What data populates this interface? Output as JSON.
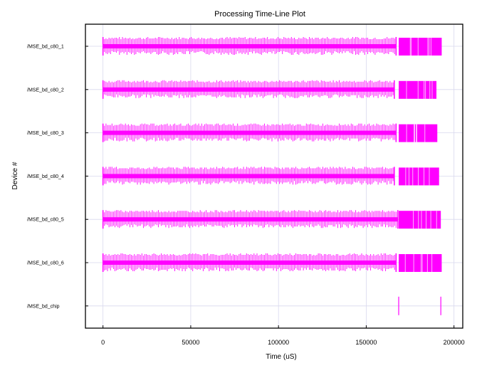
{
  "chart_data": {
    "type": "timeline",
    "title": "Processing Time-Line Plot",
    "xlabel": "Time (uS)",
    "ylabel": "Device #",
    "xlim": [
      -10000,
      205000
    ],
    "x_ticks": [
      0,
      50000,
      100000,
      150000,
      200000
    ],
    "grid": true,
    "mark_color": "#ff00ff",
    "grid_color": "#d8d8ee",
    "devices": [
      {
        "name": "/MSE_bd_c80_1",
        "segments": [
          {
            "start": 0,
            "end": 167000,
            "style": "dense-ticks"
          },
          {
            "start": 168500,
            "end": 193000,
            "style": "block"
          }
        ]
      },
      {
        "name": "/MSE_bd_c80_2",
        "segments": [
          {
            "start": 0,
            "end": 166000,
            "style": "dense-ticks"
          },
          {
            "start": 168500,
            "end": 190000,
            "style": "block"
          }
        ]
      },
      {
        "name": "/MSE_bd_c80_3",
        "segments": [
          {
            "start": 0,
            "end": 167000,
            "style": "dense-ticks"
          },
          {
            "start": 168500,
            "end": 190500,
            "style": "block"
          }
        ]
      },
      {
        "name": "/MSE_bd_c80_4",
        "segments": [
          {
            "start": 0,
            "end": 166000,
            "style": "dense-ticks"
          },
          {
            "start": 168500,
            "end": 191500,
            "style": "block"
          }
        ]
      },
      {
        "name": "/MSE_bd_c80_5",
        "segments": [
          {
            "start": 0,
            "end": 168000,
            "style": "dense-ticks"
          },
          {
            "start": 168500,
            "end": 192500,
            "style": "block"
          }
        ]
      },
      {
        "name": "/MSE_bd_c80_6",
        "segments": [
          {
            "start": 0,
            "end": 167000,
            "style": "dense-ticks"
          },
          {
            "start": 168500,
            "end": 193000,
            "style": "block"
          }
        ]
      },
      {
        "name": "/MSE_bd_chip",
        "segments": [
          {
            "start": 168500,
            "end": 168500,
            "style": "marker"
          },
          {
            "start": 192500,
            "end": 192500,
            "style": "marker"
          }
        ]
      }
    ]
  }
}
